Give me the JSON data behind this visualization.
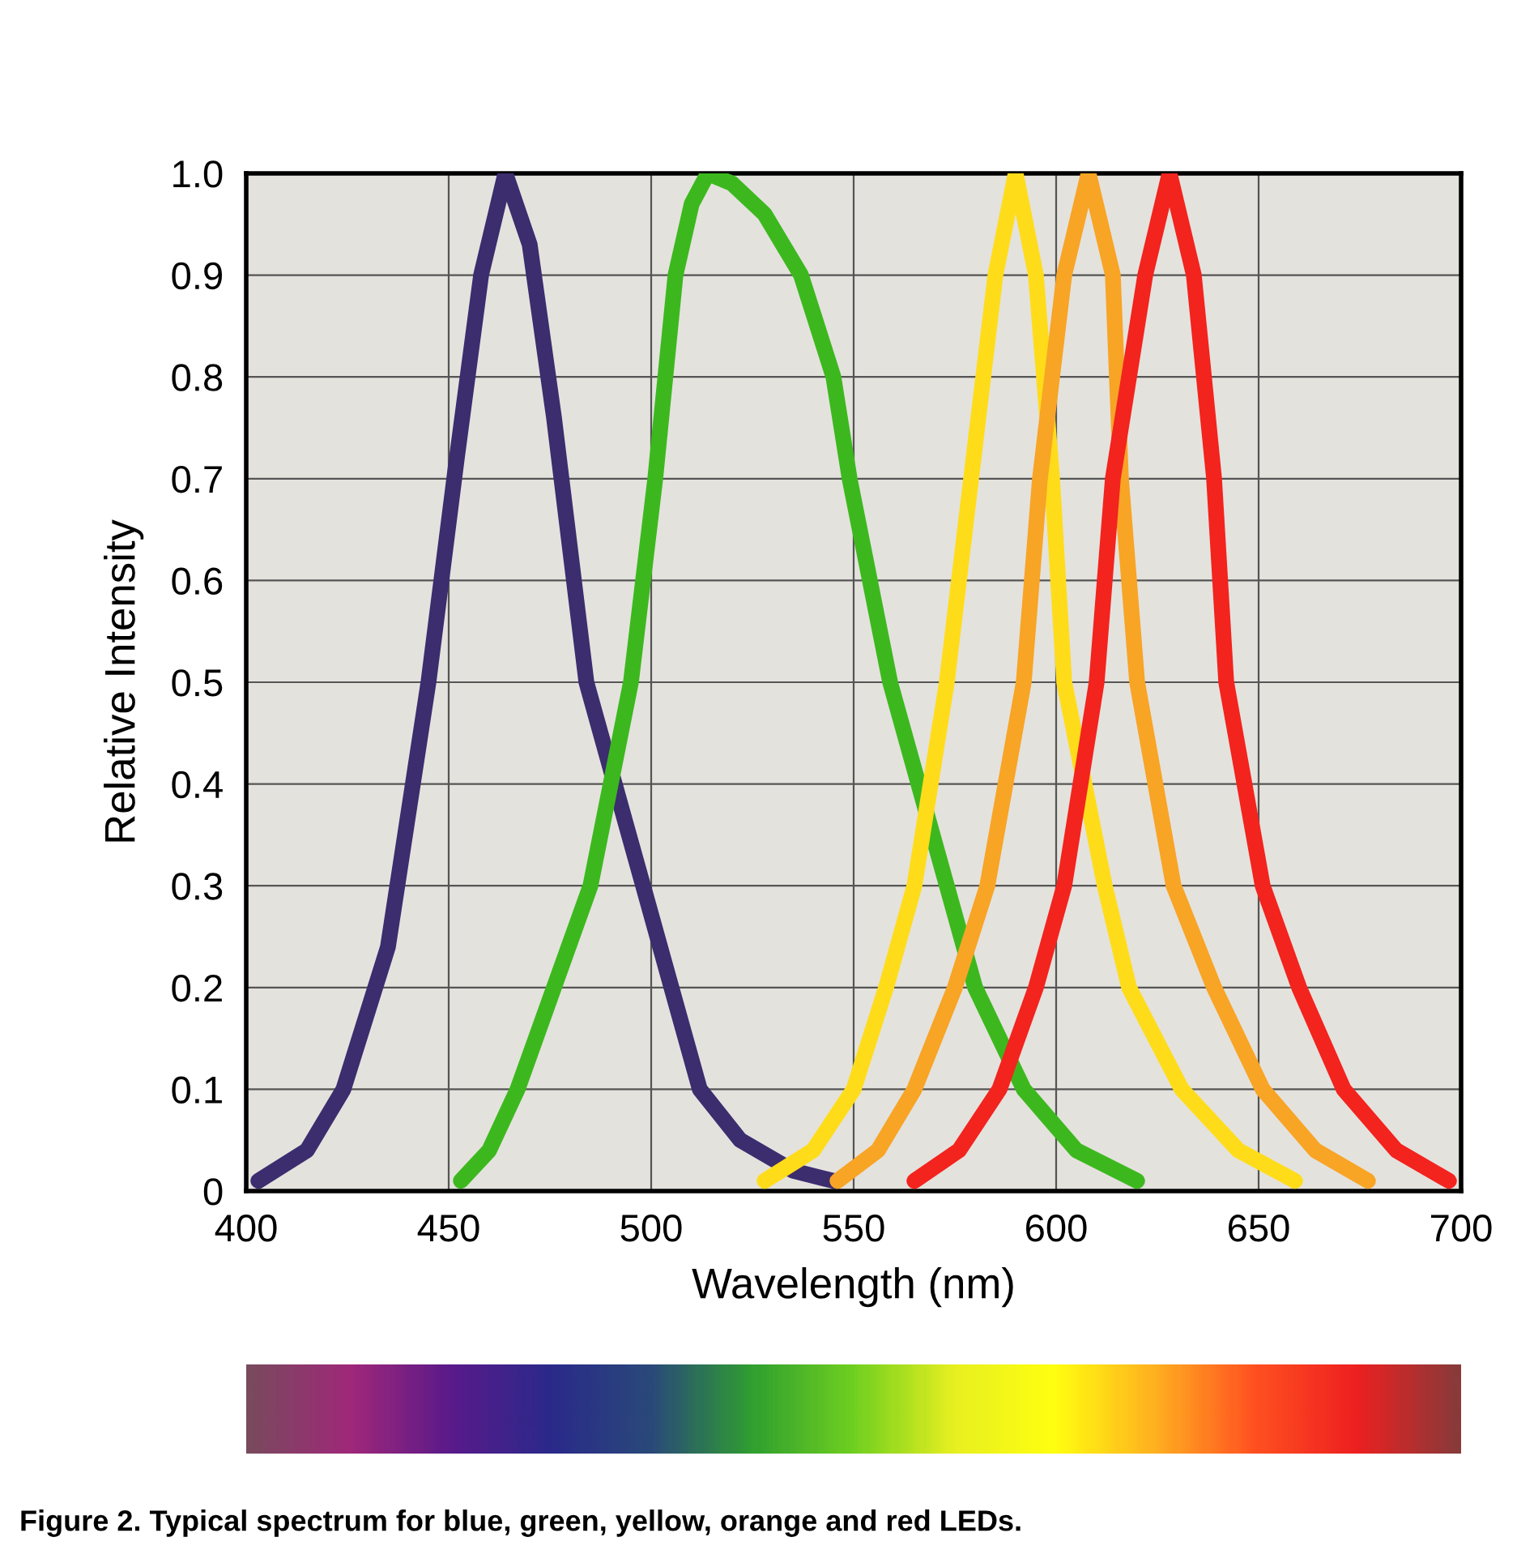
{
  "chart_data": {
    "type": "line",
    "xlabel": "Wavelength (nm)",
    "ylabel": "Relative Intensity",
    "xlim": [
      400,
      700
    ],
    "ylim": [
      0,
      1.0
    ],
    "xticks": [
      400,
      450,
      500,
      550,
      600,
      650,
      700
    ],
    "yticks": [
      0,
      0.1,
      0.2,
      0.3,
      0.4,
      0.5,
      0.6,
      0.7,
      0.8,
      0.9,
      {
        "value": 1.0,
        "label": "1.0"
      }
    ],
    "grid": true,
    "legend": false,
    "marker": "none",
    "line_style": "solid",
    "series": [
      {
        "color": "#3b2d6e",
        "x": [
          403,
          415,
          424,
          435,
          445,
          452,
          458,
          464,
          470,
          476,
          484,
          491,
          498,
          505,
          512,
          522,
          535,
          545
        ],
        "values": [
          0.01,
          0.04,
          0.1,
          0.24,
          0.5,
          0.72,
          0.9,
          1.0,
          0.93,
          0.76,
          0.5,
          0.4,
          0.3,
          0.2,
          0.1,
          0.05,
          0.02,
          0.01
        ]
      },
      {
        "color": "#3cb81e",
        "x": [
          453,
          460,
          467,
          476,
          485,
          495,
          501,
          506,
          510,
          514,
          520,
          528,
          537,
          545,
          549,
          554,
          559,
          566,
          573,
          580,
          592,
          605,
          620
        ],
        "values": [
          0.01,
          0.04,
          0.1,
          0.2,
          0.3,
          0.5,
          0.7,
          0.9,
          0.97,
          1.0,
          0.99,
          0.96,
          0.9,
          0.8,
          0.7,
          0.6,
          0.5,
          0.4,
          0.3,
          0.2,
          0.1,
          0.04,
          0.01
        ]
      },
      {
        "color": "#ffdc1a",
        "x": [
          528,
          540,
          550,
          558,
          565,
          573,
          579,
          585,
          590,
          595,
          599,
          602,
          607,
          612,
          618,
          631,
          645,
          659
        ],
        "values": [
          0.01,
          0.04,
          0.1,
          0.2,
          0.3,
          0.5,
          0.7,
          0.9,
          1.0,
          0.9,
          0.7,
          0.5,
          0.4,
          0.3,
          0.2,
          0.1,
          0.04,
          0.01
        ]
      },
      {
        "color": "#f8a425",
        "x": [
          546,
          556,
          565,
          575,
          583,
          592,
          596,
          602,
          608,
          614,
          616,
          620,
          629,
          639,
          651,
          664,
          677
        ],
        "values": [
          0.01,
          0.04,
          0.1,
          0.2,
          0.3,
          0.5,
          0.7,
          0.9,
          1.0,
          0.9,
          0.7,
          0.5,
          0.3,
          0.2,
          0.1,
          0.04,
          0.01
        ]
      },
      {
        "color": "#f3231e",
        "x": [
          565,
          576,
          586,
          595,
          602,
          610,
          614,
          622,
          628,
          634,
          639,
          642,
          651,
          660,
          671,
          684,
          697
        ],
        "values": [
          0.01,
          0.04,
          0.1,
          0.2,
          0.3,
          0.5,
          0.7,
          0.9,
          1.0,
          0.9,
          0.7,
          0.5,
          0.3,
          0.2,
          0.1,
          0.04,
          0.01
        ]
      }
    ],
    "annotations": [
      "Figure 2. Typical spectrum for blue, green, yellow, orange and red LEDs."
    ]
  }
}
